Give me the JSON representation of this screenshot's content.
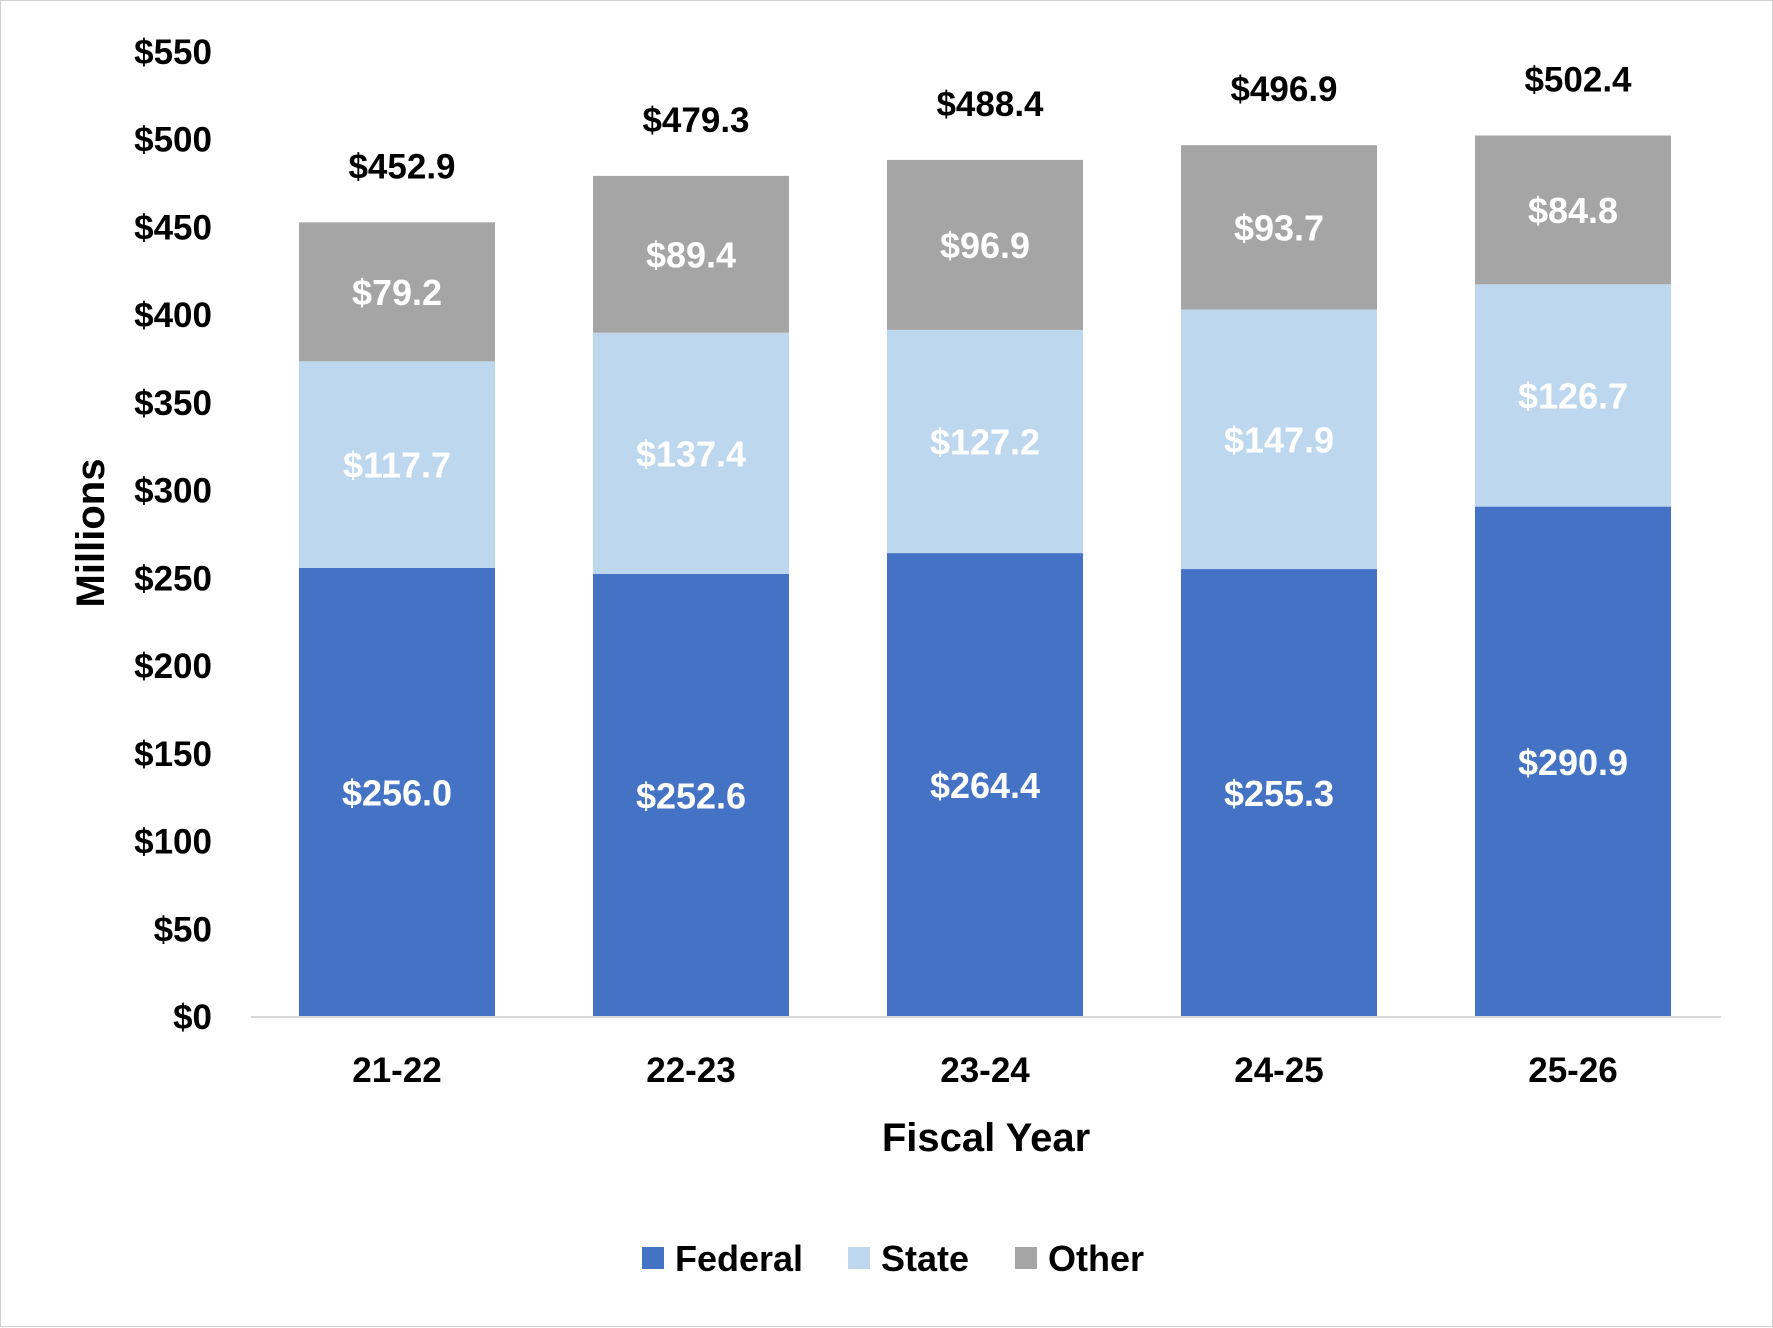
{
  "chart_data": {
    "type": "bar",
    "stacked": true,
    "categories": [
      "21-22",
      "22-23",
      "23-24",
      "24-25",
      "25-26"
    ],
    "series": [
      {
        "name": "Federal",
        "values": [
          256.0,
          252.6,
          264.4,
          255.3,
          290.9
        ],
        "labels": [
          "$256.0",
          "$252.6",
          "$264.4",
          "$255.3",
          "$290.9"
        ],
        "color": "#4472c4"
      },
      {
        "name": "State",
        "values": [
          117.7,
          137.4,
          127.2,
          147.9,
          126.7
        ],
        "labels": [
          "$117.7",
          "$137.4",
          "$127.2",
          "$147.9",
          "$126.7"
        ],
        "color": "#bdd7ee"
      },
      {
        "name": "Other",
        "values": [
          79.2,
          89.4,
          96.9,
          93.7,
          84.8
        ],
        "labels": [
          "$79.2",
          "$89.4",
          "$96.9",
          "$93.7",
          "$84.8"
        ],
        "color": "#a5a5a5"
      }
    ],
    "totals": [
      452.9,
      479.3,
      488.4,
      496.9,
      502.4
    ],
    "total_labels": [
      "$452.9",
      "$479.3",
      "$488.4",
      "$496.9",
      "$502.4"
    ],
    "title": "",
    "xlabel": "Fiscal Year",
    "ylabel": "Millions",
    "ylim": [
      0,
      550
    ],
    "yticks": [
      0,
      50,
      100,
      150,
      200,
      250,
      300,
      350,
      400,
      450,
      500,
      550
    ],
    "ytick_labels": [
      "$0",
      "$50",
      "$100",
      "$150",
      "$200",
      "$250",
      "$300",
      "$350",
      "$400",
      "$450",
      "$500",
      "$550"
    ],
    "grid": false,
    "legend": "bottom"
  }
}
